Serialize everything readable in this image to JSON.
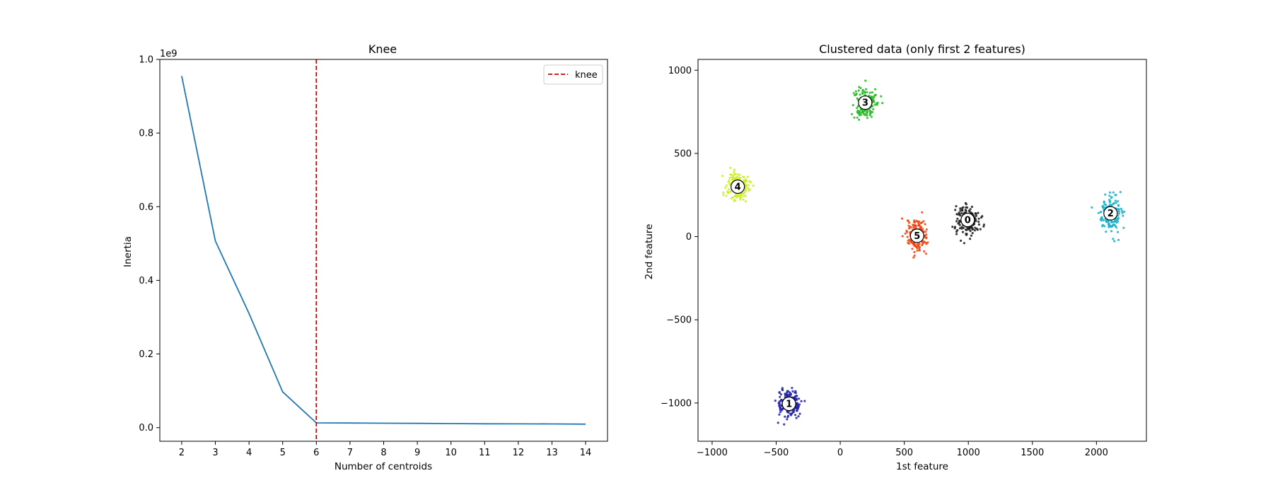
{
  "chart_data": [
    {
      "type": "line",
      "title": "Knee",
      "xlabel": "Number of centroids",
      "ylabel": "Inertia",
      "y_offset_label": "1e9",
      "x": [
        2,
        3,
        4,
        5,
        6,
        7,
        8,
        9,
        10,
        11,
        12,
        13,
        14
      ],
      "series": [
        {
          "values": [
            0.955,
            0.507,
            0.31,
            0.097,
            0.013,
            0.0125,
            0.012,
            0.0115,
            0.011,
            0.0105,
            0.0102,
            0.01,
            0.0095
          ],
          "color": "#1f77b4"
        }
      ],
      "knee": {
        "x": 6,
        "label": "knee",
        "color": "#cc0000"
      },
      "xlim": [
        1.35,
        14.65
      ],
      "ylim": [
        -0.037,
        1.0
      ],
      "xticks": [
        2,
        3,
        4,
        5,
        6,
        7,
        8,
        9,
        10,
        11,
        12,
        13,
        14
      ],
      "yticks": [
        0.0,
        0.2,
        0.4,
        0.6,
        0.8,
        1.0
      ],
      "ytick_labels": [
        "0.0",
        "0.2",
        "0.4",
        "0.6",
        "0.8",
        "1.0"
      ],
      "legend": "top-right",
      "grid": false
    },
    {
      "type": "scatter",
      "title": "Clustered data (only first 2 features)",
      "xlabel": "1st feature",
      "ylabel": "2nd feature",
      "xlim": [
        -1110,
        2390
      ],
      "ylim": [
        -1230,
        1065
      ],
      "xticks": [
        -1000,
        -500,
        0,
        500,
        1000,
        1500,
        2000
      ],
      "yticks": [
        -1000,
        -500,
        0,
        500,
        1000
      ],
      "grid": false,
      "clusters": [
        {
          "label": "0",
          "center": [
            995,
            100
          ],
          "color": "#1a1a1a",
          "spread": [
            45,
            45
          ],
          "n": 180
        },
        {
          "label": "1",
          "center": [
            -400,
            -1005
          ],
          "color": "#2020aa",
          "spread": [
            45,
            40
          ],
          "n": 180
        },
        {
          "label": "2",
          "center": [
            2110,
            140
          ],
          "color": "#17b0c8",
          "spread": [
            42,
            50
          ],
          "n": 180
        },
        {
          "label": "3",
          "center": [
            195,
            805
          ],
          "color": "#22bb22",
          "spread": [
            42,
            45
          ],
          "n": 180
        },
        {
          "label": "4",
          "center": [
            -800,
            300
          ],
          "color": "#ccee22",
          "spread": [
            42,
            45
          ],
          "n": 180
        },
        {
          "label": "5",
          "center": [
            600,
            5
          ],
          "color": "#ee4411",
          "spread": [
            42,
            45
          ],
          "n": 180
        }
      ]
    }
  ]
}
